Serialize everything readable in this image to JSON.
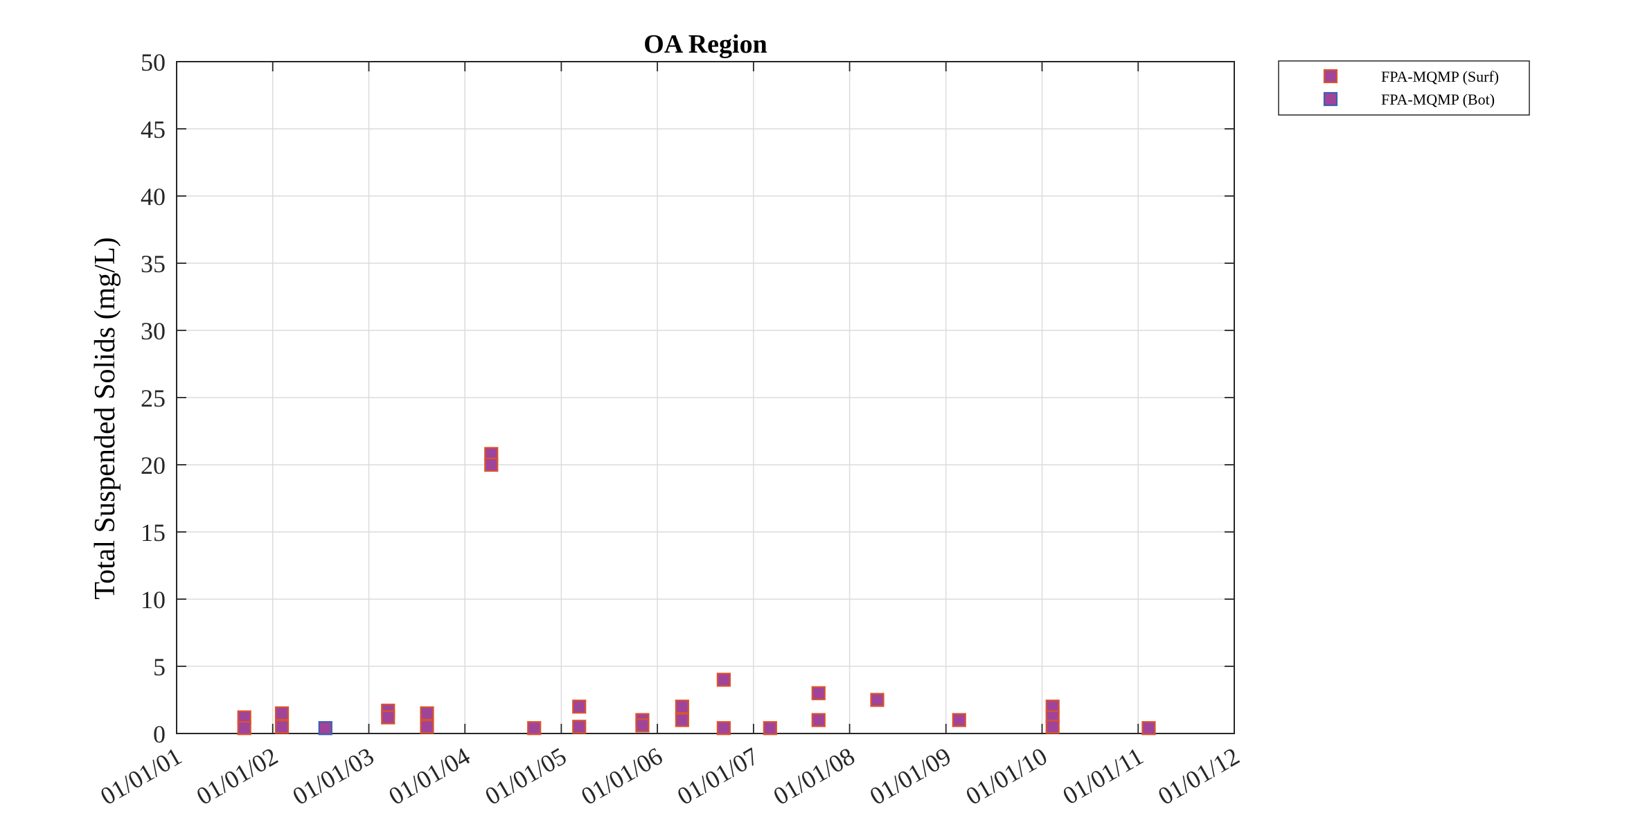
{
  "chart_data": {
    "type": "scatter",
    "title": "OA Region",
    "xlabel": "",
    "ylabel": "Total Suspended Solids (mg/L)",
    "x_axis_type": "date",
    "xlim": [
      "2001-01-01",
      "2012-01-01"
    ],
    "ylim": [
      0,
      50
    ],
    "x_ticks": [
      "2001-01-01",
      "2002-01-01",
      "2003-01-01",
      "2004-01-01",
      "2005-01-01",
      "2006-01-01",
      "2007-01-01",
      "2008-01-01",
      "2009-01-01",
      "2010-01-01",
      "2011-01-01",
      "2012-01-01"
    ],
    "x_tick_labels": [
      "01/01/01",
      "01/01/02",
      "01/01/03",
      "01/01/04",
      "01/01/05",
      "01/01/06",
      "01/01/07",
      "01/01/08",
      "01/01/09",
      "01/01/10",
      "01/01/11",
      "01/01/12"
    ],
    "y_ticks": [
      0,
      5,
      10,
      15,
      20,
      25,
      30,
      35,
      40,
      45,
      50
    ],
    "grid": true,
    "legend_position": "outside-top-right",
    "series": [
      {
        "name": "FPA-MQMP (Surf)",
        "marker": "square",
        "fill": "#a0449a",
        "edge": "#d9542b",
        "points": [
          {
            "x": "2001-09-15",
            "y": 1.2
          },
          {
            "x": "2001-09-15",
            "y": 0.4
          },
          {
            "x": "2002-02-05",
            "y": 1.5
          },
          {
            "x": "2002-02-05",
            "y": 0.5
          },
          {
            "x": "2003-03-15",
            "y": 1.7
          },
          {
            "x": "2003-03-15",
            "y": 1.2
          },
          {
            "x": "2003-08-10",
            "y": 1.5
          },
          {
            "x": "2003-08-10",
            "y": 0.5
          },
          {
            "x": "2004-04-10",
            "y": 20.8
          },
          {
            "x": "2004-04-10",
            "y": 20.0
          },
          {
            "x": "2004-09-20",
            "y": 0.4
          },
          {
            "x": "2005-03-10",
            "y": 2.0
          },
          {
            "x": "2005-03-10",
            "y": 0.5
          },
          {
            "x": "2005-11-05",
            "y": 1.0
          },
          {
            "x": "2005-11-05",
            "y": 0.6
          },
          {
            "x": "2006-04-05",
            "y": 2.0
          },
          {
            "x": "2006-04-05",
            "y": 1.0
          },
          {
            "x": "2006-09-10",
            "y": 4.0
          },
          {
            "x": "2006-09-10",
            "y": 0.4
          },
          {
            "x": "2007-03-05",
            "y": 0.4
          },
          {
            "x": "2007-09-05",
            "y": 3.0
          },
          {
            "x": "2007-09-05",
            "y": 1.0
          },
          {
            "x": "2008-04-15",
            "y": 2.5
          },
          {
            "x": "2009-02-20",
            "y": 1.0
          },
          {
            "x": "2010-02-10",
            "y": 2.0
          },
          {
            "x": "2010-02-10",
            "y": 1.2
          },
          {
            "x": "2010-02-10",
            "y": 0.5
          },
          {
            "x": "2011-02-10",
            "y": 0.4
          }
        ]
      },
      {
        "name": "FPA-MQMP (Bot)",
        "marker": "square",
        "fill": "#a0449a",
        "edge": "#3b5fb0",
        "points": [
          {
            "x": "2002-07-20",
            "y": 0.4
          }
        ]
      }
    ]
  }
}
